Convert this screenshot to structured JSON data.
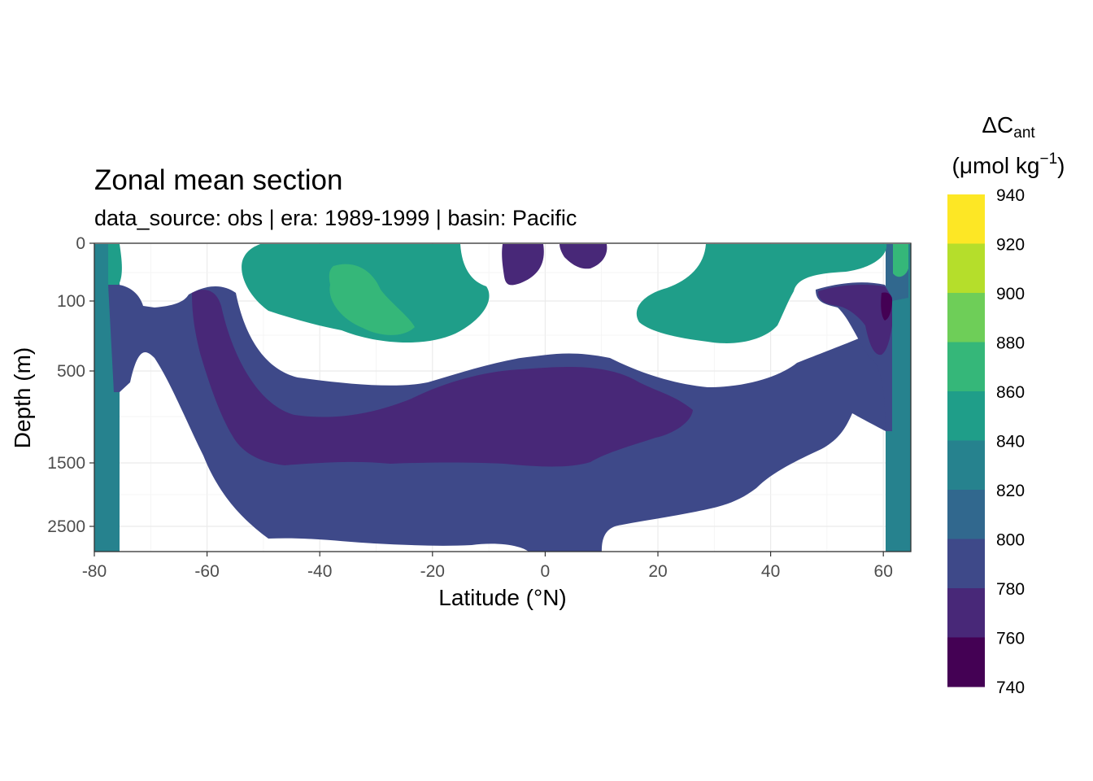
{
  "chart_data": {
    "type": "heatmap",
    "title": "Zonal mean section",
    "subtitle": "data_source:  obs | era:  1989-1999 | basin: Pacific",
    "xlabel": "Latitude (°N)",
    "ylabel": "Depth (m)",
    "x_ticks": [
      "-80",
      "-60",
      "-40",
      "-20",
      "0",
      "20",
      "40",
      "60"
    ],
    "y_ticks": [
      "0",
      "100",
      "500",
      "1500",
      "2500"
    ],
    "xlim": [
      -80,
      65
    ],
    "y_scale": "reversed-sqrt",
    "grid": true,
    "legend": {
      "title_main": "ΔC",
      "title_sub": "ant",
      "unit_prefix": "(μmol kg",
      "unit_sup": "−1",
      "unit_suffix": ")",
      "placement": "right",
      "breaks": [
        "940",
        "920",
        "900",
        "880",
        "860",
        "840",
        "820",
        "800",
        "780",
        "760",
        "740"
      ],
      "colors": [
        "#fde725",
        "#b5de2b",
        "#6ece58",
        "#35b779",
        "#1f9e89",
        "#26828e",
        "#31688e",
        "#3e4989",
        "#482878",
        "#440154"
      ]
    },
    "regions": [
      {
        "name": "deep-south-820-840",
        "level": "820-840"
      },
      {
        "name": "upper-800-820",
        "level": "800-820"
      },
      {
        "name": "south-surface-840-860",
        "level": "840-860"
      },
      {
        "name": "subtropical-south-840-860",
        "level": "840-860"
      },
      {
        "name": "subtropical-south-core-860-880",
        "level": "860-880"
      },
      {
        "name": "subtropical-north-840-860",
        "level": "840-860"
      },
      {
        "name": "southern-780-800",
        "level": "780-800"
      },
      {
        "name": "intermediate-760-780",
        "level": "760-780"
      },
      {
        "name": "equatorial-surface-760-780",
        "level": "760-780"
      },
      {
        "name": "north-780-800",
        "level": "780-800"
      },
      {
        "name": "north-760-780",
        "level": "760-780"
      },
      {
        "name": "north-740-760",
        "level": "740-760"
      },
      {
        "name": "north-surface-860-880",
        "level": "860-880"
      }
    ]
  }
}
